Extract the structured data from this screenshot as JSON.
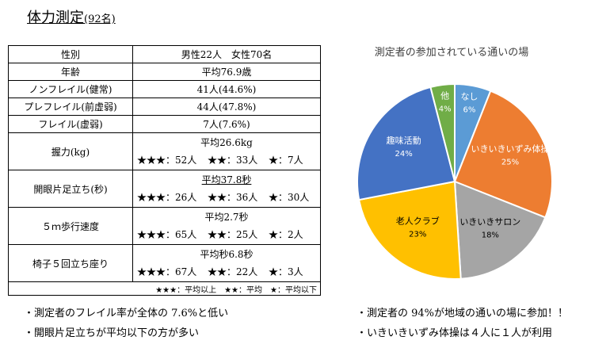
{
  "header": {
    "title": "体力測定",
    "title_note": "(92名)"
  },
  "table": {
    "rows": [
      {
        "label": "性別",
        "value": "男性22人　女性70名"
      },
      {
        "label": "年齢",
        "value": "平均76.9歳"
      },
      {
        "label": "ノンフレイル(健常)",
        "value": "41人(44.6%)"
      },
      {
        "label": "プレフレイル(前虚弱)",
        "value": "44人(47.8%)"
      },
      {
        "label": "フレイル(虚弱)",
        "value": "7人(7.6%)"
      },
      {
        "label": "握力(kg)",
        "average": "平均26.6kg",
        "stars": [
          "★★★：52人",
          "★★：33人",
          "★：7人"
        ]
      },
      {
        "label": "開眼片足立ち(秒)",
        "average": "平均37.8秒",
        "stars": [
          "★★★：26人",
          "★★：36人",
          "★：30人"
        ]
      },
      {
        "label": "５ｍ歩行速度",
        "average": "平均2.7秒",
        "stars": [
          "★★★：65人",
          "★★：25人",
          "★：2人"
        ]
      },
      {
        "label": "椅子５回立ち座り",
        "average": "平均秒6.8秒",
        "stars": [
          "★★★：67人",
          "★★：22人",
          "★：3人"
        ]
      }
    ],
    "legend": "★★★：平均以上　★★：平均　★：平均以下"
  },
  "notes_left": [
    "・測定者のフレイル率が全体の 7.6%と低い",
    "・開眼片足立ちが平均以下の方が多い"
  ],
  "notes_right": [
    "・測定者の 94%が地域の通いの場に参加！！",
    "・いきいきいずみ体操は４人に１人が利用"
  ],
  "chart_data": {
    "type": "pie",
    "title": "測定者の参加されている通いの場",
    "categories": [
      "なし",
      "いきいきいずみ体操",
      "いきいきサロン",
      "老人クラブ",
      "趣味活動",
      "他"
    ],
    "values": [
      6,
      25,
      18,
      23,
      24,
      4
    ],
    "value_labels": [
      "6%",
      "25%",
      "18%",
      "23%",
      "24%",
      "4%"
    ],
    "colors": [
      "#5b9bd5",
      "#ed7d31",
      "#a5a5a5",
      "#ffc000",
      "#4472c4",
      "#70ad47"
    ]
  }
}
